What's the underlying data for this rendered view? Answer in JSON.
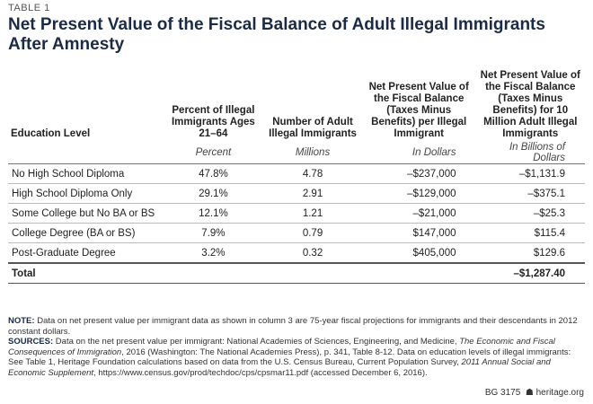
{
  "label": "TABLE 1",
  "title": "Net Present Value of the Fiscal Balance of Adult Illegal Immigrants After Amnesty",
  "table": {
    "headers": [
      "Education Level",
      "Percent of Illegal Immigrants Ages 21–64",
      "Number of Adult Illegal Immigrants",
      "Net Present Value of the Fiscal Balance (Taxes Minus Benefits) per Illegal Immigrant",
      "Net Present Value of the Fiscal Balance (Taxes Minus Benefits) for 10 Million Adult Illegal Immigrants"
    ],
    "units": [
      "Percent",
      "Millions",
      "In Dollars",
      "In Billions of Dollars"
    ],
    "rows": [
      [
        "No High School Diploma",
        "47.8%",
        "4.78",
        "–$237,000",
        "–$1,131.9"
      ],
      [
        "High School Diploma Only",
        "29.1%",
        "2.91",
        "–$129,000",
        "–$375.1"
      ],
      [
        "Some College but No BA or BS",
        "12.1%",
        "1.21",
        "–$21,000",
        "–$25.3"
      ],
      [
        "College Degree (BA or BS)",
        "7.9%",
        "0.79",
        "$147,000",
        "$115.4"
      ],
      [
        "Post-Graduate Degree",
        "3.2%",
        "0.32",
        "$405,000",
        "$129.6"
      ]
    ],
    "total": {
      "label": "Total",
      "value": "–$1,287.40"
    }
  },
  "note": {
    "label": "NOTE:",
    "text": "Data on net present value per immigrant data as shown in column 3 are 75-year fiscal projections for immigrants and their descendants in 2012 constant dollars."
  },
  "sources": {
    "label": "SOURCES:",
    "parts": [
      "Data on the net present value per immigrant: National Academies of Sciences, Engineering, and Medicine, ",
      "The Economic and Fiscal Consequences of Immigration",
      ", 2016 (Washington: The National Academies Press), p. 341, Table 8-12. Data on education levels of illegal immigrants: See Table 1, Heritage Foundation calculations based on data from the U.S. Census Bureau, Current Population Survey, ",
      "2011 Annual Social and Economic Supplement",
      ", https://www.census.gov/prod/techdoc/cps/cpsmar11.pdf (accessed December 6, 2016)."
    ]
  },
  "footer": {
    "code": "BG 3175",
    "site": "heritage.org"
  }
}
